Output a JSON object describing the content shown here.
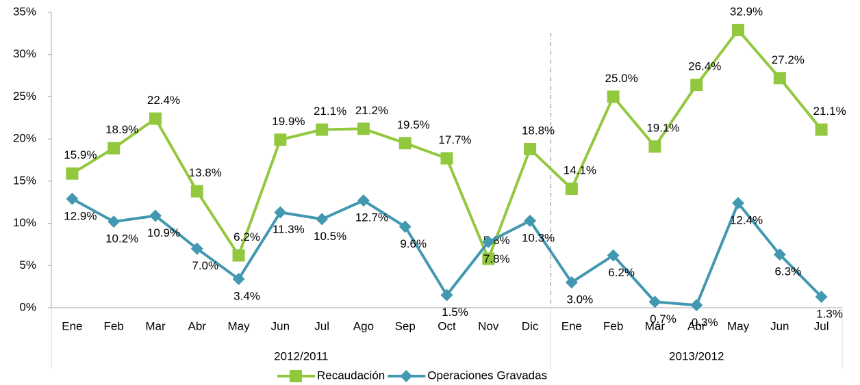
{
  "chart_data": {
    "type": "line",
    "categories": [
      "Ene",
      "Feb",
      "Mar",
      "Abr",
      "May",
      "Jun",
      "Jul",
      "Ago",
      "Sep",
      "Oct",
      "Nov",
      "Dic",
      "Ene",
      "Feb",
      "Mar",
      "Abr",
      "May",
      "Jun",
      "Jul"
    ],
    "groups": [
      "2012/2011",
      "2013/2012"
    ],
    "series": [
      {
        "name": "Recaudación",
        "color": "#92c83e",
        "marker": "square",
        "values": [
          15.9,
          18.9,
          22.4,
          13.8,
          6.2,
          19.9,
          21.1,
          21.2,
          19.5,
          17.7,
          5.8,
          18.8,
          14.1,
          25.0,
          19.1,
          26.4,
          32.9,
          27.2,
          21.1
        ],
        "value_labels": [
          "15.9%",
          "18.9%",
          "22.4%",
          "13.8%",
          "6.2%",
          "19.9%",
          "21.1%",
          "21.2%",
          "19.5%",
          "17.7%",
          "5.8%",
          "18.8%",
          "14.1%",
          "25.0%",
          "19.1%",
          "26.4%",
          "32.9%",
          "27.2%",
          "21.1%"
        ]
      },
      {
        "name": "Operaciones Gravadas",
        "color": "#4298b0",
        "marker": "diamond",
        "values": [
          12.9,
          10.2,
          10.9,
          7.0,
          3.4,
          11.3,
          10.5,
          12.7,
          9.6,
          1.5,
          7.8,
          10.3,
          3.0,
          6.2,
          0.7,
          0.3,
          12.4,
          6.3,
          1.3
        ],
        "value_labels": [
          "12.9%",
          "10.2%",
          "10.9%",
          "7.0%",
          "3.4%",
          "11.3%",
          "10.5%",
          "12.7%",
          "9.6%",
          "1.5%",
          "7.8%",
          "10.3%",
          "3.0%",
          "6.2%",
          "0.7%",
          "0.3%",
          "12.4%",
          "6.3%",
          "1.3%"
        ]
      }
    ],
    "ylim": [
      0,
      35
    ],
    "yticks": [
      {
        "value": 0,
        "label": "0%"
      },
      {
        "value": 5,
        "label": "5%"
      },
      {
        "value": 10,
        "label": "10%"
      },
      {
        "value": 15,
        "label": "15%"
      },
      {
        "value": 20,
        "label": "20%"
      },
      {
        "value": 25,
        "label": "25%"
      },
      {
        "value": 30,
        "label": "30%"
      },
      {
        "value": 35,
        "label": "35%"
      }
    ],
    "legend": "bottom"
  }
}
